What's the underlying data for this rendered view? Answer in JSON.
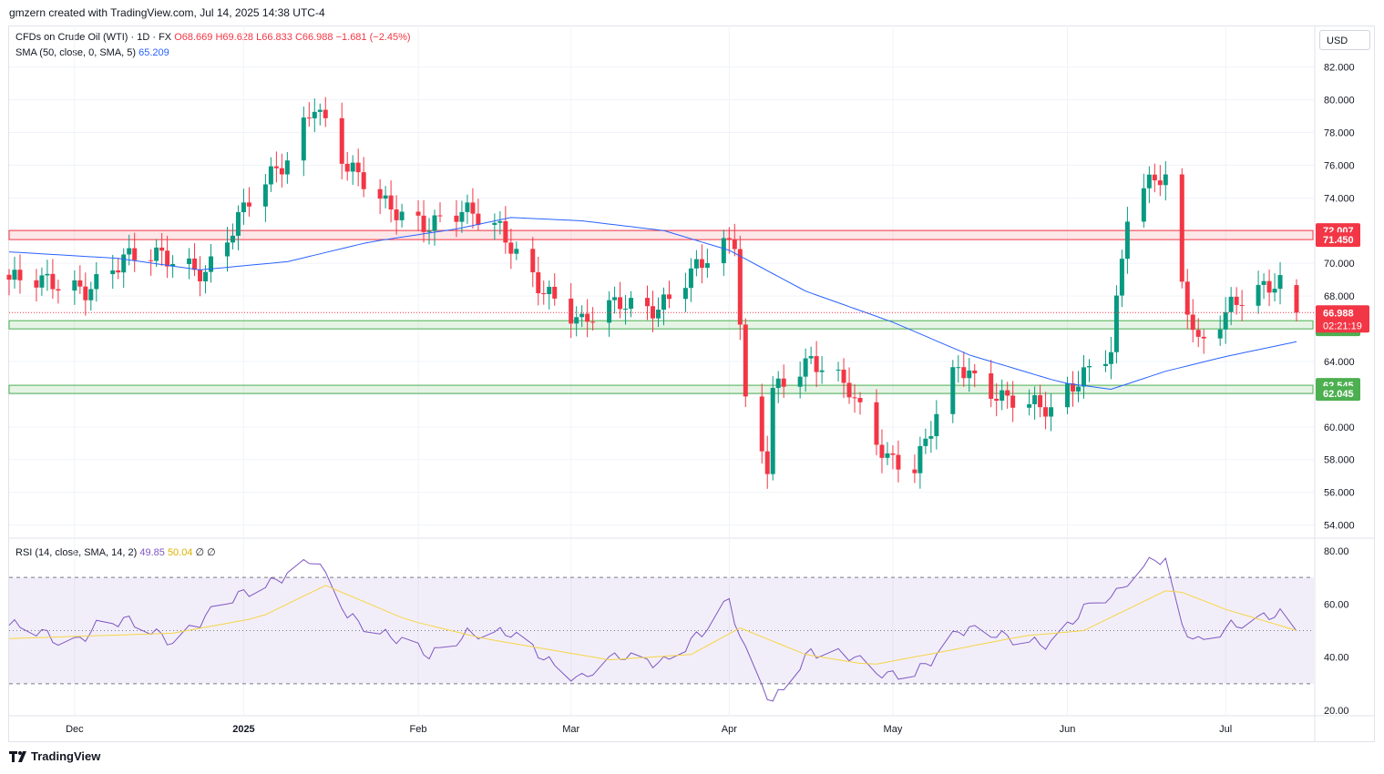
{
  "header": {
    "attribution": "gmzern created with TradingView.com, Jul 14, 2025 14:38 UTC-4"
  },
  "legend": {
    "symbol": "CFDs on Crude Oil (WTI) · 1D · FX",
    "open": "O68.669",
    "high": "H69.628",
    "low": "L66.833",
    "close": "C66.988",
    "change": "−1.681 (−2.45%)",
    "sma_label": "SMA (50, close, 0, SMA, 5)",
    "sma_value": "65.209",
    "rsi_label": "RSI (14, close, SMA, 14, 2)",
    "rsi_value": "49.85",
    "rsi_sma_value": "50.04",
    "rsi_extra": "∅ ∅"
  },
  "currency": "USD",
  "footer": {
    "brand": "TradingView"
  },
  "colors": {
    "up": "#089981",
    "down": "#f23645",
    "sma": "#2962ff",
    "rsi": "#7e57c2",
    "rsi_sma": "#f5d547",
    "support": "#4caf50",
    "resistance": "#f23645"
  },
  "chart_data": [
    {
      "type": "candlestick",
      "title": "CFDs on Crude Oil (WTI) · 1D · FX",
      "ylim": [
        53,
        83
      ],
      "y_ticks": [
        "82.000",
        "80.000",
        "78.000",
        "76.000",
        "74.000",
        "72.000",
        "70.000",
        "68.000",
        "66.000",
        "64.000",
        "62.000",
        "60.000",
        "58.000",
        "56.000",
        "54.000"
      ],
      "x_ticks": [
        "Dec",
        "2025",
        "Feb",
        "Mar",
        "Apr",
        "May",
        "Jun",
        "Jul"
      ],
      "x_tick_dates": [
        "2024-12-02",
        "2025-01-02",
        "2025-02-03",
        "2025-03-03",
        "2025-04-01",
        "2025-05-01",
        "2025-06-02",
        "2025-07-01"
      ],
      "ohlc_anchor_closes": [
        [
          "2024-11-20",
          69.0
        ],
        [
          "2024-11-27",
          68.7
        ],
        [
          "2024-12-04",
          68.5
        ],
        [
          "2024-12-11",
          70.3
        ],
        [
          "2024-12-18",
          70.3
        ],
        [
          "2024-12-26",
          69.6
        ],
        [
          "2025-01-03",
          73.7
        ],
        [
          "2025-01-10",
          76.3
        ],
        [
          "2025-01-15",
          80.0
        ],
        [
          "2025-01-21",
          75.9
        ],
        [
          "2025-01-28",
          73.4
        ],
        [
          "2025-02-04",
          72.5
        ],
        [
          "2025-02-11",
          73.2
        ],
        [
          "2025-02-18",
          71.9
        ],
        [
          "2025-02-25",
          68.9
        ],
        [
          "2025-03-05",
          66.2
        ],
        [
          "2025-03-12",
          67.6
        ],
        [
          "2025-03-19",
          67.4
        ],
        [
          "2025-03-26",
          69.6
        ],
        [
          "2025-04-02",
          71.4
        ],
        [
          "2025-04-04",
          61.5
        ],
        [
          "2025-04-08",
          57.9
        ],
        [
          "2025-04-09",
          62.4
        ],
        [
          "2025-04-16",
          63.8
        ],
        [
          "2025-04-23",
          62.4
        ],
        [
          "2025-04-30",
          58.2
        ],
        [
          "2025-05-05",
          57.3
        ],
        [
          "2025-05-13",
          63.8
        ],
        [
          "2025-05-21",
          61.9
        ],
        [
          "2025-05-30",
          60.8
        ],
        [
          "2025-06-05",
          63.4
        ],
        [
          "2025-06-10",
          64.9
        ],
        [
          "2025-06-13",
          73.0
        ],
        [
          "2025-06-18",
          75.1
        ],
        [
          "2025-06-20",
          74.9
        ],
        [
          "2025-06-23",
          68.5
        ],
        [
          "2025-06-26",
          65.2
        ],
        [
          "2025-07-02",
          67.5
        ],
        [
          "2025-07-09",
          68.4
        ],
        [
          "2025-07-11",
          68.67
        ],
        [
          "2025-07-14",
          66.988
        ]
      ],
      "last_price": "66.988",
      "countdown": "02:21:19",
      "zones": [
        {
          "kind": "resistance",
          "high": "72.007",
          "low": "71.450"
        },
        {
          "kind": "support",
          "high": "66.493",
          "low": "65.992"
        },
        {
          "kind": "support",
          "high": "62.545",
          "low": "62.045"
        }
      ],
      "sma_series": {
        "name": "SMA (50, close, 0, SMA, 5)",
        "last": 65.209,
        "anchors": [
          [
            "2024-11-20",
            70.7
          ],
          [
            "2024-12-10",
            70.3
          ],
          [
            "2024-12-25",
            69.6
          ],
          [
            "2025-01-10",
            70.1
          ],
          [
            "2025-01-25",
            71.3
          ],
          [
            "2025-02-10",
            72.1
          ],
          [
            "2025-02-20",
            72.8
          ],
          [
            "2025-03-05",
            72.6
          ],
          [
            "2025-03-20",
            72.0
          ],
          [
            "2025-04-01",
            70.8
          ],
          [
            "2025-04-15",
            68.3
          ],
          [
            "2025-05-01",
            66.4
          ],
          [
            "2025-05-15",
            64.4
          ],
          [
            "2025-06-01",
            62.7
          ],
          [
            "2025-06-10",
            62.3
          ],
          [
            "2025-06-20",
            63.4
          ],
          [
            "2025-07-01",
            64.3
          ],
          [
            "2025-07-14",
            65.209
          ]
        ]
      }
    },
    {
      "type": "line",
      "title": "RSI (14, close, SMA, 14, 2)",
      "ylim": [
        18,
        82
      ],
      "y_ticks": [
        "80.00",
        "60.00",
        "40.00",
        "20.00"
      ],
      "bands": [
        30,
        70
      ],
      "series": [
        {
          "name": "RSI",
          "last": 49.85,
          "anchors": [
            [
              "2024-11-20",
              52
            ],
            [
              "2024-12-01",
              45
            ],
            [
              "2024-12-06",
              52
            ],
            [
              "2024-12-11",
              53
            ],
            [
              "2024-12-20",
              47
            ],
            [
              "2025-01-03",
              65
            ],
            [
              "2025-01-10",
              72
            ],
            [
              "2025-01-15",
              76
            ],
            [
              "2025-01-21",
              56
            ],
            [
              "2025-01-28",
              49
            ],
            [
              "2025-02-05",
              40
            ],
            [
              "2025-02-12",
              50
            ],
            [
              "2025-02-20",
              48
            ],
            [
              "2025-02-27",
              39
            ],
            [
              "2025-03-05",
              32
            ],
            [
              "2025-03-12",
              40
            ],
            [
              "2025-03-20",
              39
            ],
            [
              "2025-03-27",
              48
            ],
            [
              "2025-04-01",
              61
            ],
            [
              "2025-04-04",
              43
            ],
            [
              "2025-04-09",
              23
            ],
            [
              "2025-04-16",
              41
            ],
            [
              "2025-04-23",
              42
            ],
            [
              "2025-04-30",
              32
            ],
            [
              "2025-05-05",
              33
            ],
            [
              "2025-05-13",
              51
            ],
            [
              "2025-05-21",
              47
            ],
            [
              "2025-05-30",
              46
            ],
            [
              "2025-06-05",
              57
            ],
            [
              "2025-06-11",
              64
            ],
            [
              "2025-06-13",
              70
            ],
            [
              "2025-06-18",
              78
            ],
            [
              "2025-06-20",
              75
            ],
            [
              "2025-06-23",
              50
            ],
            [
              "2025-06-26",
              45
            ],
            [
              "2025-07-02",
              53
            ],
            [
              "2025-07-09",
              55
            ],
            [
              "2025-07-11",
              55
            ],
            [
              "2025-07-14",
              49.85
            ]
          ]
        },
        {
          "name": "RSI SMA",
          "last": 50.04,
          "anchors": [
            [
              "2024-11-20",
              47
            ],
            [
              "2024-12-20",
              49
            ],
            [
              "2025-01-05",
              55
            ],
            [
              "2025-01-17",
              67
            ],
            [
              "2025-02-01",
              54
            ],
            [
              "2025-02-15",
              47
            ],
            [
              "2025-03-10",
              39
            ],
            [
              "2025-03-25",
              41
            ],
            [
              "2025-04-03",
              51
            ],
            [
              "2025-04-15",
              41
            ],
            [
              "2025-04-27",
              37
            ],
            [
              "2025-05-10",
              42
            ],
            [
              "2025-05-25",
              48
            ],
            [
              "2025-06-05",
              50
            ],
            [
              "2025-06-15",
              60
            ],
            [
              "2025-06-21",
              66
            ],
            [
              "2025-07-01",
              58
            ],
            [
              "2025-07-14",
              50.04
            ]
          ]
        }
      ]
    }
  ]
}
